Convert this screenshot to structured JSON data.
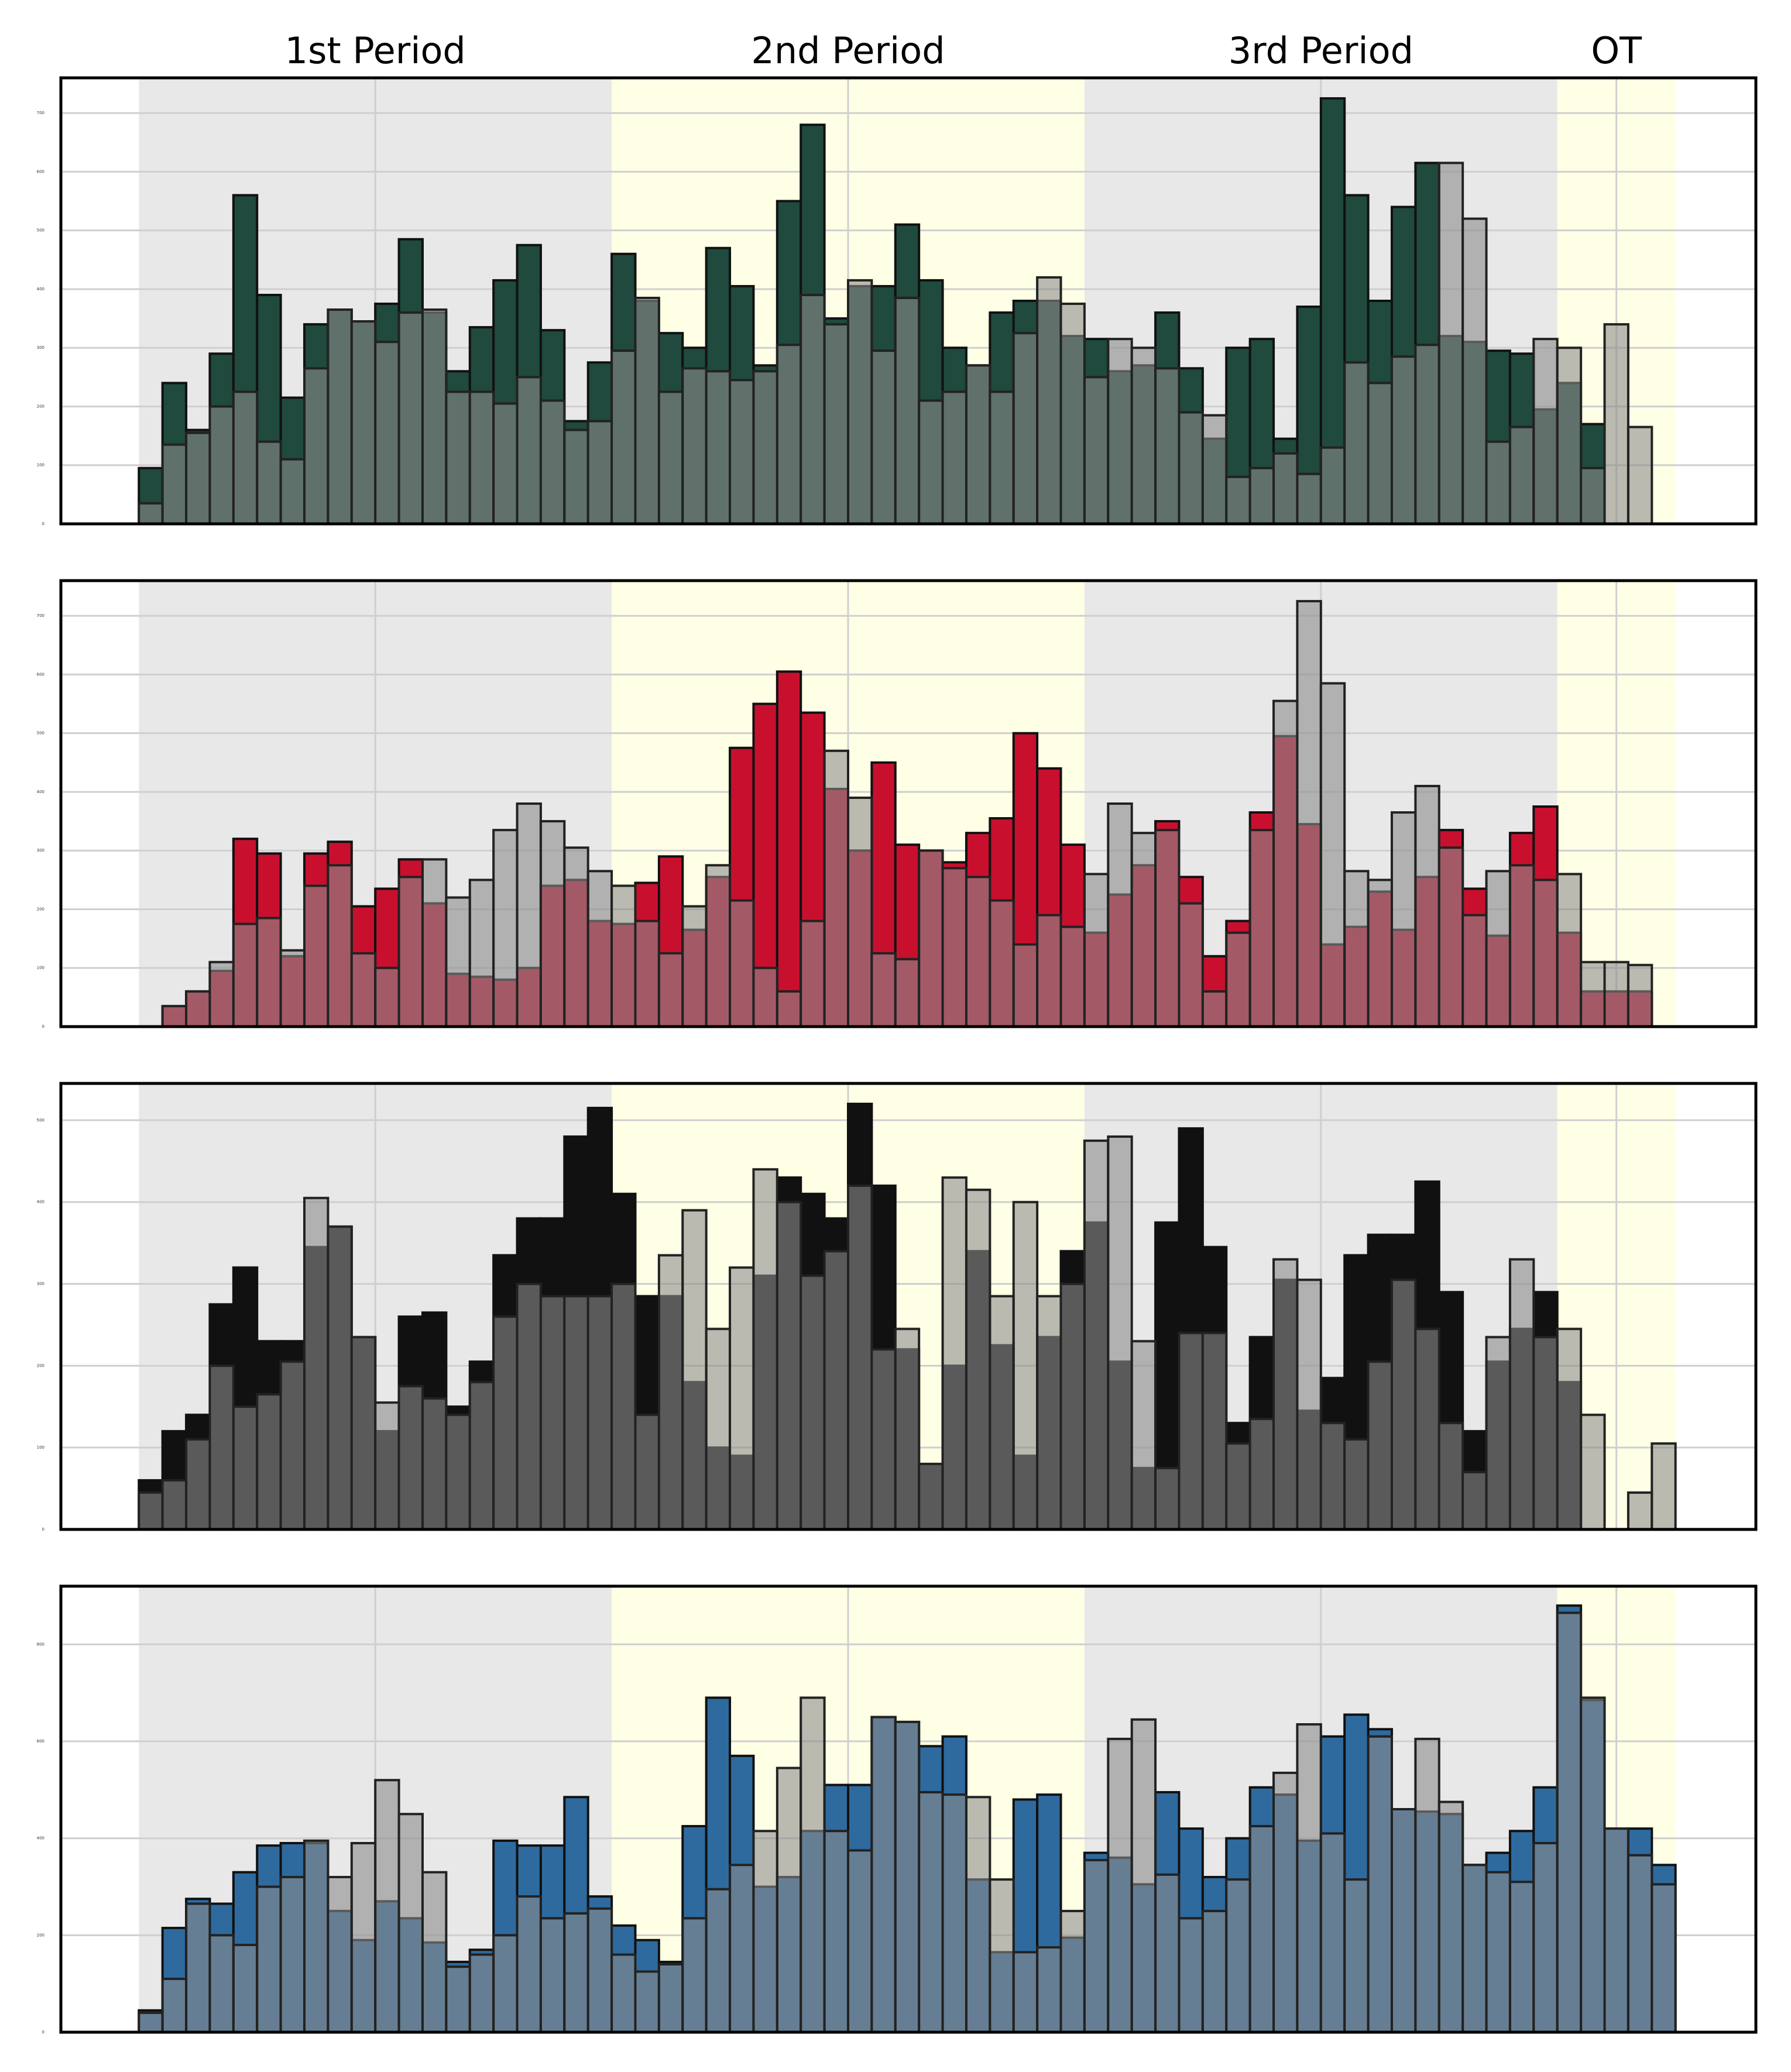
{
  "periods": [
    {
      "label": "1st Period",
      "start": 0,
      "end": 20
    },
    {
      "label": "2nd Period",
      "start": 20,
      "end": 40
    },
    {
      "label": "3rd Period",
      "start": 40,
      "end": 60
    },
    {
      "label": "OT",
      "start": 60,
      "end": 65
    }
  ],
  "colors": {
    "period_shade_odd": "#e8e8e8",
    "period_shade_even": "#ffffe6",
    "gray_bar": "#8c8c8c"
  },
  "chart_data": [
    {
      "type": "bar",
      "title": "",
      "xlabel": "",
      "ylabel": "",
      "xlim": [
        -3.3,
        68.4
      ],
      "ylim": [
        0,
        760
      ],
      "yticks": [
        0,
        100,
        200,
        300,
        400,
        500,
        600,
        700
      ],
      "ytick_labels": [
        "0",
        "100",
        "200",
        "300",
        "400",
        "500",
        "600",
        "700"
      ],
      "team_color": "#1f4a3d",
      "series": [
        {
          "role": "team",
          "values": [
            95,
            240,
            160,
            290,
            560,
            390,
            215,
            340,
            365,
            345,
            375,
            485,
            360,
            260,
            335,
            415,
            475,
            330,
            175,
            275,
            460,
            380,
            325,
            300,
            470,
            405,
            270,
            550,
            680,
            350,
            405,
            405,
            510,
            415,
            300,
            270,
            360,
            380,
            380,
            320,
            315,
            260,
            270,
            360,
            265,
            145,
            300,
            315,
            145,
            370,
            725,
            560,
            380,
            540,
            615,
            320,
            310,
            295,
            290,
            195,
            240,
            170
          ]
        },
        {
          "role": "comparison",
          "values": [
            35,
            135,
            155,
            200,
            225,
            140,
            110,
            265,
            365,
            345,
            310,
            360,
            365,
            225,
            225,
            205,
            250,
            210,
            160,
            175,
            295,
            385,
            225,
            265,
            260,
            245,
            260,
            305,
            390,
            340,
            415,
            295,
            385,
            210,
            225,
            270,
            225,
            325,
            420,
            375,
            250,
            315,
            300,
            265,
            190,
            185,
            80,
            95,
            120,
            85,
            130,
            275,
            240,
            285,
            305,
            615,
            520,
            140,
            165,
            315,
            300,
            95,
            340,
            165
          ]
        }
      ]
    },
    {
      "type": "bar",
      "title": "",
      "xlabel": "",
      "ylabel": "",
      "xlim": [
        -3.3,
        68.4
      ],
      "ylim": [
        0,
        760
      ],
      "yticks": [
        0,
        100,
        200,
        300,
        400,
        500,
        600,
        700
      ],
      "ytick_labels": [
        "0",
        "100",
        "200",
        "300",
        "400",
        "500",
        "600",
        "700"
      ],
      "team_color": "#c8102e",
      "series": [
        {
          "role": "team",
          "values": [
            0,
            35,
            60,
            95,
            320,
            295,
            120,
            295,
            315,
            205,
            235,
            285,
            210,
            90,
            85,
            80,
            100,
            240,
            250,
            180,
            175,
            245,
            290,
            165,
            255,
            475,
            550,
            605,
            535,
            405,
            300,
            450,
            310,
            300,
            280,
            330,
            355,
            500,
            440,
            310,
            160,
            225,
            275,
            350,
            255,
            120,
            180,
            365,
            495,
            345,
            140,
            170,
            230,
            165,
            255,
            335,
            235,
            155,
            330,
            375,
            160,
            60,
            60,
            60
          ]
        },
        {
          "role": "comparison",
          "values": [
            0,
            35,
            60,
            110,
            175,
            185,
            130,
            240,
            275,
            125,
            100,
            255,
            285,
            220,
            250,
            335,
            380,
            350,
            305,
            265,
            240,
            180,
            125,
            205,
            275,
            215,
            100,
            60,
            180,
            470,
            390,
            125,
            115,
            300,
            270,
            255,
            215,
            140,
            190,
            170,
            260,
            380,
            330,
            335,
            210,
            60,
            160,
            335,
            555,
            725,
            585,
            265,
            250,
            365,
            410,
            305,
            190,
            265,
            275,
            250,
            260,
            110,
            110,
            105
          ]
        }
      ]
    },
    {
      "type": "bar",
      "title": "",
      "xlabel": "",
      "ylabel": "",
      "xlim": [
        -3.3,
        68.4
      ],
      "ylim": [
        0,
        545
      ],
      "yticks": [
        0,
        100,
        200,
        300,
        400,
        500
      ],
      "ytick_labels": [
        "0",
        "100",
        "200",
        "300",
        "400",
        "500"
      ],
      "team_color": "#111111",
      "series": [
        {
          "role": "team",
          "values": [
            60,
            120,
            140,
            275,
            320,
            230,
            230,
            345,
            370,
            235,
            120,
            260,
            265,
            150,
            205,
            335,
            380,
            380,
            480,
            515,
            410,
            285,
            285,
            180,
            100,
            90,
            310,
            430,
            410,
            380,
            520,
            420,
            220,
            80,
            200,
            340,
            225,
            90,
            235,
            340,
            375,
            205,
            75,
            375,
            490,
            345,
            130,
            235,
            305,
            145,
            185,
            335,
            360,
            360,
            425,
            290,
            120,
            205,
            245,
            290,
            180,
            0,
            0
          ]
        },
        {
          "role": "comparison",
          "values": [
            45,
            60,
            110,
            200,
            150,
            165,
            205,
            405,
            370,
            235,
            155,
            175,
            160,
            140,
            180,
            260,
            300,
            285,
            285,
            285,
            300,
            140,
            335,
            390,
            245,
            320,
            440,
            400,
            310,
            340,
            420,
            220,
            245,
            80,
            430,
            415,
            285,
            400,
            285,
            300,
            475,
            480,
            230,
            75,
            240,
            240,
            105,
            135,
            330,
            305,
            130,
            110,
            205,
            305,
            245,
            130,
            70,
            235,
            330,
            235,
            245,
            140,
            0,
            45,
            105
          ]
        }
      ]
    },
    {
      "type": "bar",
      "title": "",
      "xlabel": "",
      "ylabel": "",
      "xlim": [
        -3.3,
        68.4
      ],
      "ylim": [
        0,
        920
      ],
      "yticks": [
        0,
        200,
        400,
        600,
        800
      ],
      "ytick_labels": [
        "0",
        "200",
        "400",
        "600",
        "800"
      ],
      "team_color": "#2e6a9e",
      "series": [
        {
          "role": "team",
          "values": [
            45,
            215,
            275,
            265,
            330,
            385,
            390,
            390,
            250,
            190,
            270,
            235,
            185,
            145,
            170,
            395,
            385,
            385,
            485,
            280,
            220,
            190,
            145,
            425,
            690,
            570,
            300,
            320,
            415,
            510,
            510,
            650,
            640,
            590,
            610,
            315,
            165,
            480,
            490,
            195,
            370,
            360,
            305,
            495,
            420,
            320,
            400,
            505,
            490,
            395,
            610,
            655,
            625,
            460,
            455,
            450,
            345,
            370,
            415,
            505,
            880,
            685,
            420,
            420,
            345
          ]
        },
        {
          "role": "comparison",
          "values": [
            40,
            110,
            265,
            200,
            180,
            300,
            320,
            395,
            320,
            390,
            520,
            450,
            330,
            135,
            160,
            200,
            280,
            235,
            245,
            255,
            160,
            125,
            140,
            235,
            295,
            345,
            415,
            545,
            690,
            415,
            375,
            650,
            640,
            495,
            490,
            485,
            315,
            165,
            175,
            250,
            355,
            605,
            645,
            325,
            235,
            250,
            315,
            425,
            535,
            635,
            410,
            315,
            610,
            460,
            605,
            475,
            345,
            330,
            310,
            390,
            865,
            690,
            420,
            365,
            305
          ]
        }
      ]
    }
  ]
}
